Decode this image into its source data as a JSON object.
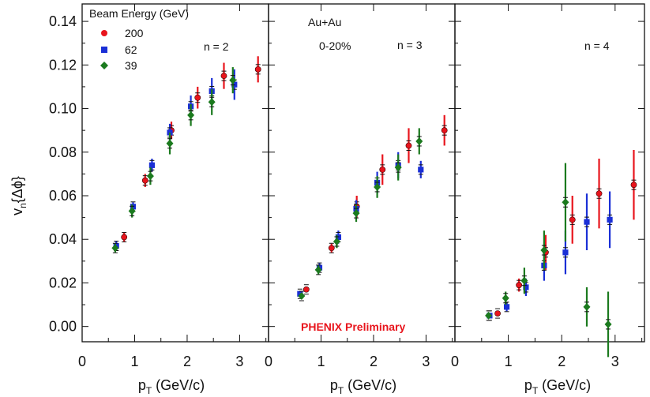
{
  "colors": {
    "s200": "#e8141c",
    "s62": "#1a2fd6",
    "s39": "#1b7a1e",
    "error_black": "#111111",
    "prelim": "#e8141c"
  },
  "chart_data": {
    "type": "scatter",
    "ylabel_main": "v",
    "ylabel_sub": "n",
    "ylabel_tail": "{Δϕ}",
    "xlabel_main": "p",
    "xlabel_sub": "T",
    "xlabel_tail": " (GeV/c)",
    "ylim": [
      -0.007,
      0.148
    ],
    "yticks": [
      "0.00",
      "0.02",
      "0.04",
      "0.06",
      "0.08",
      "0.10",
      "0.12",
      "0.14"
    ],
    "ytick_values": [
      0,
      0.02,
      0.04,
      0.06,
      0.08,
      0.1,
      0.12,
      0.14
    ],
    "xlim": [
      0,
      3.55
    ],
    "xticks": [
      "0",
      "1",
      "2",
      "3"
    ],
    "xtick_values": [
      0,
      1,
      2,
      3
    ],
    "legend": {
      "title": "Beam Energy (GeV)",
      "entries": [
        {
          "label": "200",
          "marker": "circle",
          "color_key": "s200"
        },
        {
          "label": "62",
          "marker": "square",
          "color_key": "s62"
        },
        {
          "label": "39",
          "marker": "diamond",
          "color_key": "s39"
        }
      ]
    },
    "system_label": "Au+Au",
    "centrality_label": "0-20%",
    "preliminary_label": "PHENIX Preliminary",
    "panels": [
      {
        "label": "n = 2",
        "series": [
          {
            "name": "200",
            "marker": "circle",
            "color_key": "s200",
            "points": [
              {
                "x": 0.8,
                "y": 0.041,
                "err": 0.002
              },
              {
                "x": 1.2,
                "y": 0.067,
                "err": 0.003
              },
              {
                "x": 1.7,
                "y": 0.09,
                "err": 0.004
              },
              {
                "x": 2.2,
                "y": 0.105,
                "err": 0.005
              },
              {
                "x": 2.7,
                "y": 0.115,
                "err": 0.006
              },
              {
                "x": 3.35,
                "y": 0.118,
                "err": 0.006
              }
            ]
          },
          {
            "name": "62",
            "marker": "square",
            "color_key": "s62",
            "points": [
              {
                "x": 0.65,
                "y": 0.037,
                "err": 0.002
              },
              {
                "x": 0.97,
                "y": 0.055,
                "err": 0.002
              },
              {
                "x": 1.33,
                "y": 0.074,
                "err": 0.003
              },
              {
                "x": 1.67,
                "y": 0.089,
                "err": 0.004
              },
              {
                "x": 2.07,
                "y": 0.101,
                "err": 0.005
              },
              {
                "x": 2.47,
                "y": 0.108,
                "err": 0.006
              },
              {
                "x": 2.9,
                "y": 0.111,
                "err": 0.007
              }
            ]
          },
          {
            "name": "39",
            "marker": "diamond",
            "color_key": "s39",
            "points": [
              {
                "x": 0.63,
                "y": 0.036,
                "err": 0.002
              },
              {
                "x": 0.95,
                "y": 0.053,
                "err": 0.003
              },
              {
                "x": 1.3,
                "y": 0.069,
                "err": 0.004
              },
              {
                "x": 1.67,
                "y": 0.084,
                "err": 0.005
              },
              {
                "x": 2.07,
                "y": 0.097,
                "err": 0.005
              },
              {
                "x": 2.47,
                "y": 0.103,
                "err": 0.006
              },
              {
                "x": 2.87,
                "y": 0.113,
                "err": 0.006
              }
            ]
          }
        ]
      },
      {
        "label": "n = 3",
        "series": [
          {
            "name": "200",
            "marker": "circle",
            "color_key": "s200",
            "points": [
              {
                "x": 0.72,
                "y": 0.017,
                "err": 0.001
              },
              {
                "x": 1.2,
                "y": 0.036,
                "err": 0.002
              },
              {
                "x": 1.68,
                "y": 0.055,
                "err": 0.005
              },
              {
                "x": 2.17,
                "y": 0.072,
                "err": 0.007
              },
              {
                "x": 2.67,
                "y": 0.083,
                "err": 0.008
              },
              {
                "x": 3.35,
                "y": 0.09,
                "err": 0.007
              }
            ]
          },
          {
            "name": "62",
            "marker": "square",
            "color_key": "s62",
            "points": [
              {
                "x": 0.6,
                "y": 0.015,
                "err": 0.001
              },
              {
                "x": 0.97,
                "y": 0.027,
                "err": 0.002
              },
              {
                "x": 1.33,
                "y": 0.041,
                "err": 0.003
              },
              {
                "x": 1.67,
                "y": 0.054,
                "err": 0.004
              },
              {
                "x": 2.07,
                "y": 0.066,
                "err": 0.005
              },
              {
                "x": 2.47,
                "y": 0.074,
                "err": 0.006
              },
              {
                "x": 2.9,
                "y": 0.072,
                "err": 0.004
              }
            ]
          },
          {
            "name": "39",
            "marker": "diamond",
            "color_key": "s39",
            "points": [
              {
                "x": 0.63,
                "y": 0.014,
                "err": 0.001
              },
              {
                "x": 0.95,
                "y": 0.026,
                "err": 0.002
              },
              {
                "x": 1.3,
                "y": 0.039,
                "err": 0.003
              },
              {
                "x": 1.67,
                "y": 0.052,
                "err": 0.004
              },
              {
                "x": 2.07,
                "y": 0.064,
                "err": 0.005
              },
              {
                "x": 2.47,
                "y": 0.073,
                "err": 0.006
              },
              {
                "x": 2.87,
                "y": 0.085,
                "err": 0.006
              }
            ]
          }
        ]
      },
      {
        "label": "n = 4",
        "series": [
          {
            "name": "200",
            "marker": "circle",
            "color_key": "s200",
            "points": [
              {
                "x": 0.8,
                "y": 0.006,
                "err": 0.001
              },
              {
                "x": 1.2,
                "y": 0.019,
                "err": 0.003
              },
              {
                "x": 1.7,
                "y": 0.034,
                "err": 0.008
              },
              {
                "x": 2.2,
                "y": 0.049,
                "err": 0.011
              },
              {
                "x": 2.7,
                "y": 0.061,
                "err": 0.016
              },
              {
                "x": 3.35,
                "y": 0.065,
                "err": 0.016
              }
            ]
          },
          {
            "name": "62",
            "marker": "square",
            "color_key": "s62",
            "points": [
              {
                "x": 0.65,
                "y": 0.005,
                "err": 0.001
              },
              {
                "x": 0.97,
                "y": 0.009,
                "err": 0.002
              },
              {
                "x": 1.33,
                "y": 0.018,
                "err": 0.004
              },
              {
                "x": 1.67,
                "y": 0.028,
                "err": 0.007
              },
              {
                "x": 2.07,
                "y": 0.034,
                "err": 0.01
              },
              {
                "x": 2.47,
                "y": 0.048,
                "err": 0.013
              },
              {
                "x": 2.9,
                "y": 0.049,
                "err": 0.013
              }
            ]
          },
          {
            "name": "39",
            "marker": "diamond",
            "color_key": "s39",
            "points": [
              {
                "x": 0.63,
                "y": 0.005,
                "err": 0.001
              },
              {
                "x": 0.95,
                "y": 0.013,
                "err": 0.003
              },
              {
                "x": 1.3,
                "y": 0.021,
                "err": 0.006
              },
              {
                "x": 1.67,
                "y": 0.035,
                "err": 0.009
              },
              {
                "x": 2.07,
                "y": 0.057,
                "err": 0.018
              },
              {
                "x": 2.47,
                "y": 0.009,
                "err": 0.009
              },
              {
                "x": 2.87,
                "y": 0.001,
                "err": 0.015
              }
            ]
          }
        ]
      }
    ]
  }
}
